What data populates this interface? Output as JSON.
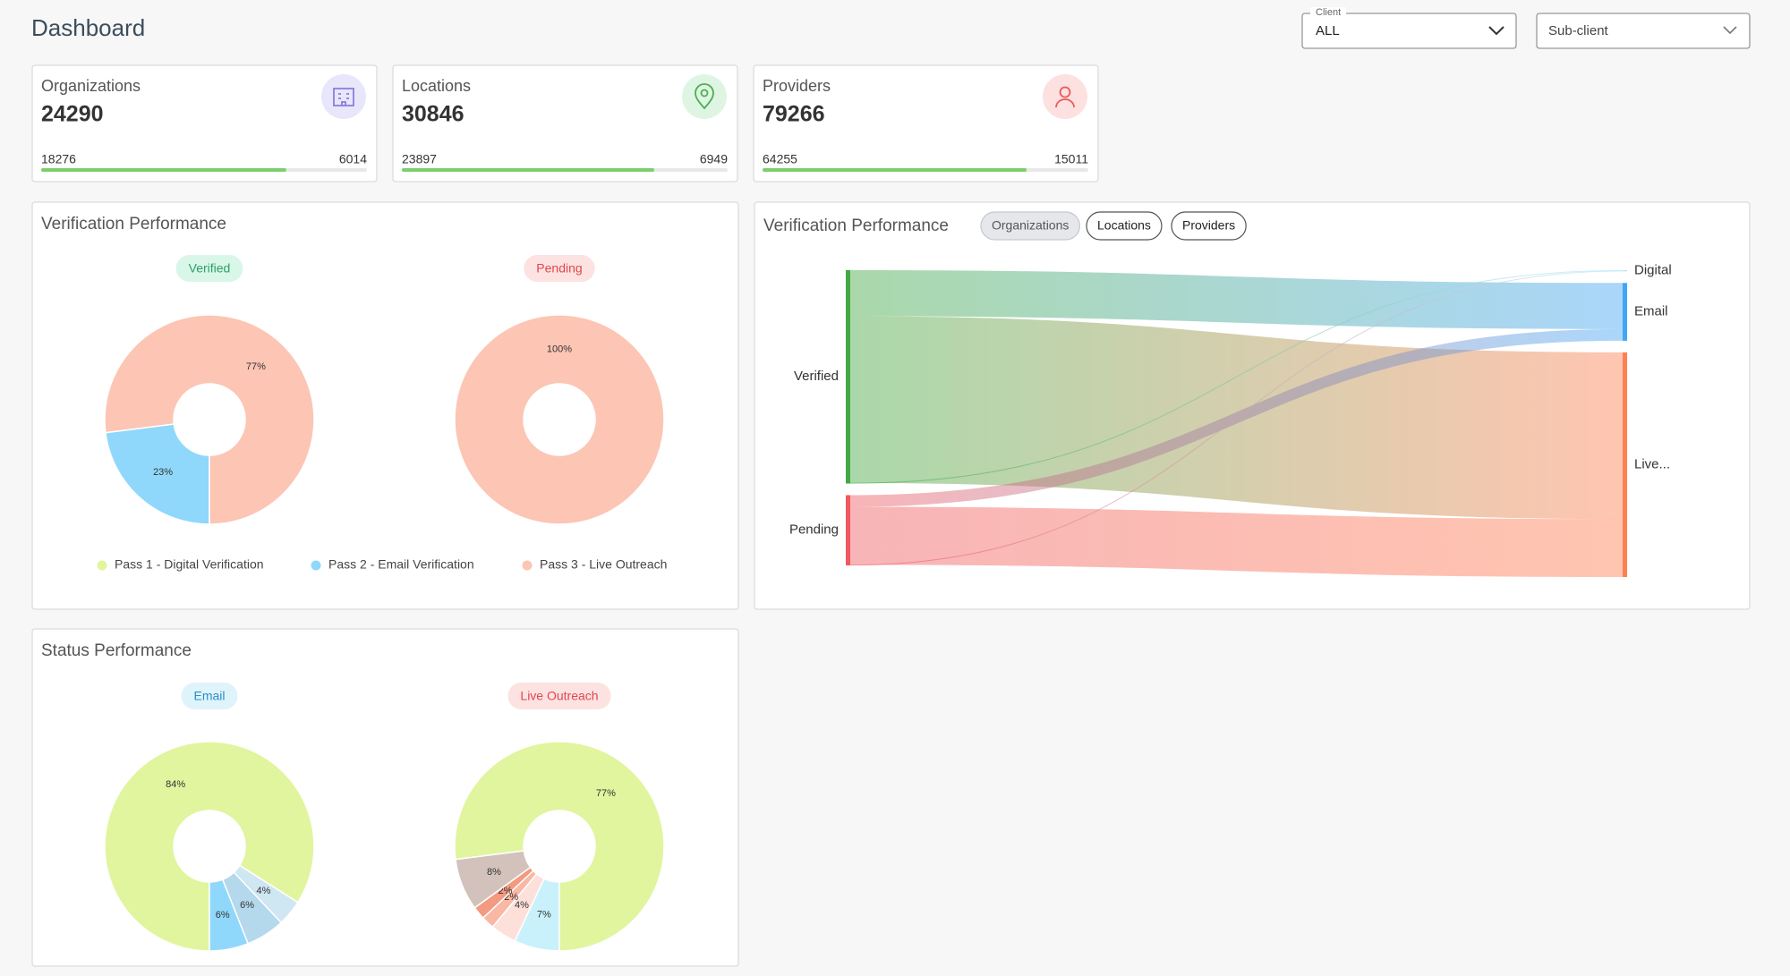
{
  "header": {
    "title": "Dashboard",
    "client_label": "Client",
    "client_value": "ALL",
    "subclient_placeholder": "Sub-client"
  },
  "kpis": [
    {
      "label": "Organizations",
      "total": 24290,
      "verified": 18276,
      "pending": 6014
    },
    {
      "label": "Locations",
      "total": 30846,
      "verified": 23897,
      "pending": 6949
    },
    {
      "label": "Providers",
      "total": 79266,
      "verified": 64255,
      "pending": 15011
    }
  ],
  "verification_performance": {
    "title": "Verification Performance",
    "categories": [
      "Pass 1 - Digital Verification",
      "Pass 2 - Email Verification",
      "Pass 3 - Live Outreach"
    ],
    "colors": [
      "#e0f59e",
      "#8fd8fb",
      "#fcc5b4"
    ],
    "charts": [
      {
        "type": "pie",
        "title": "Verified",
        "values": [
          0,
          23,
          77
        ],
        "badge_color": "#d9f7e8",
        "badge_text_color": "#2e9e6a"
      },
      {
        "type": "pie",
        "title": "Pending",
        "values": [
          0,
          0,
          100
        ],
        "badge_color": "#fde2e2",
        "badge_text_color": "#e0474c"
      }
    ]
  },
  "status_performance": {
    "title": "Status Performance",
    "charts": [
      {
        "type": "pie",
        "title": "Email",
        "values": [
          84,
          4,
          6,
          6
        ],
        "colors": [
          "#e0f59e",
          "#cfe6f3",
          "#b4d8ec",
          "#8fd8fb"
        ],
        "badge_color": "#dff3fb",
        "badge_text_color": "#2a8fc4"
      },
      {
        "type": "pie",
        "title": "Live Outreach",
        "values": [
          7,
          4,
          2,
          2,
          8,
          77
        ],
        "colors": [
          "#c8f1fb",
          "#fde0da",
          "#f9b7a4",
          "#f39a80",
          "#d3c2bb",
          "#e0f59e"
        ],
        "badge_color": "#fde2e2",
        "badge_text_color": "#e0474c"
      }
    ]
  },
  "flow": {
    "title": "Verification Performance",
    "tabs": [
      "Organizations",
      "Locations",
      "Providers"
    ],
    "selected_tab": 0,
    "chart_data": {
      "type": "sankey",
      "nodes": [
        {
          "name": "Verified",
          "color": "#43a843",
          "side": "left"
        },
        {
          "name": "Pending",
          "color": "#f0595f",
          "side": "left"
        },
        {
          "name": "Digital",
          "color": "#b3e5fc",
          "side": "right"
        },
        {
          "name": "Email",
          "color": "#42a5f5",
          "side": "right"
        },
        {
          "name": "Live...",
          "color": "#ff7f50",
          "side": "right"
        }
      ],
      "links": [
        {
          "source": 0,
          "target": 3,
          "value": 3950
        },
        {
          "source": 0,
          "target": 4,
          "value": 14276
        },
        {
          "source": 0,
          "target": 2,
          "value": 50
        },
        {
          "source": 1,
          "target": 3,
          "value": 1000
        },
        {
          "source": 1,
          "target": 4,
          "value": 4964
        },
        {
          "source": 1,
          "target": 2,
          "value": 50
        }
      ]
    }
  }
}
